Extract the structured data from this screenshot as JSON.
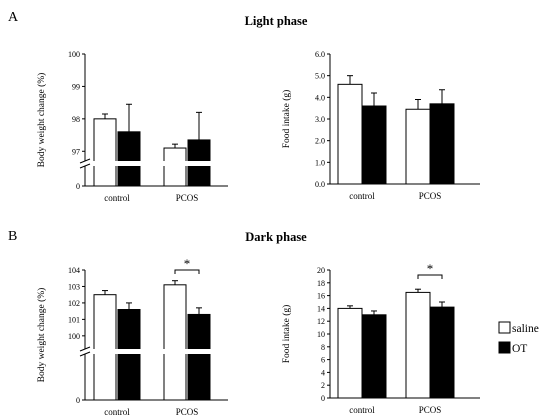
{
  "figure": {
    "panels": [
      {
        "label": "A",
        "title": "Light phase"
      },
      {
        "label": "B",
        "title": "Dark phase"
      }
    ]
  },
  "legend": {
    "entries": [
      {
        "label": "saline",
        "fill": "#ffffff"
      },
      {
        "label": "OT",
        "fill": "#000000"
      }
    ]
  },
  "chart_data": [
    {
      "id": "light-bw",
      "type": "bar",
      "panel": "A",
      "title": "",
      "ylabel": "Body weight change (%)",
      "xlabel": "",
      "categories": [
        "control",
        "PCOS"
      ],
      "axis_break": true,
      "yticks": [
        0,
        97,
        98,
        99,
        100
      ],
      "ylim_upper": [
        96.7,
        100
      ],
      "series": [
        {
          "name": "saline",
          "color": "#ffffff",
          "values": [
            98.0,
            97.1
          ],
          "errors": [
            0.15,
            0.12
          ]
        },
        {
          "name": "OT",
          "color": "#000000",
          "values": [
            97.6,
            97.35
          ],
          "errors": [
            0.85,
            0.85
          ]
        }
      ],
      "significance": []
    },
    {
      "id": "light-food",
      "type": "bar",
      "panel": "A",
      "title": "",
      "ylabel": "Food intake (g)",
      "xlabel": "",
      "categories": [
        "control",
        "PCOS"
      ],
      "axis_break": false,
      "yticks": [
        "0.0",
        "1.0",
        "2.0",
        "3.0",
        "4.0",
        "5.0",
        "6.0"
      ],
      "ylim": [
        0,
        6
      ],
      "series": [
        {
          "name": "saline",
          "color": "#ffffff",
          "values": [
            4.6,
            3.45
          ],
          "errors": [
            0.4,
            0.45
          ]
        },
        {
          "name": "OT",
          "color": "#000000",
          "values": [
            3.6,
            3.7
          ],
          "errors": [
            0.6,
            0.65
          ]
        }
      ],
      "significance": []
    },
    {
      "id": "dark-bw",
      "type": "bar",
      "panel": "B",
      "title": "",
      "ylabel": "Body weight change (%)",
      "xlabel": "",
      "categories": [
        "control",
        "PCOS"
      ],
      "axis_break": true,
      "yticks": [
        0,
        100,
        101,
        102,
        103,
        104
      ],
      "ylim_upper": [
        99.2,
        104
      ],
      "series": [
        {
          "name": "saline",
          "color": "#ffffff",
          "values": [
            102.5,
            103.1
          ],
          "errors": [
            0.25,
            0.25
          ]
        },
        {
          "name": "OT",
          "color": "#000000",
          "values": [
            101.6,
            101.3
          ],
          "errors": [
            0.4,
            0.4
          ]
        }
      ],
      "significance": [
        {
          "category": "PCOS",
          "label": "*"
        }
      ]
    },
    {
      "id": "dark-food",
      "type": "bar",
      "panel": "B",
      "title": "",
      "ylabel": "Food intake (g)",
      "xlabel": "",
      "categories": [
        "control",
        "PCOS"
      ],
      "axis_break": false,
      "yticks": [
        0,
        2,
        4,
        6,
        8,
        10,
        12,
        14,
        16,
        18,
        20
      ],
      "ylim": [
        0,
        20
      ],
      "series": [
        {
          "name": "saline",
          "color": "#ffffff",
          "values": [
            14.0,
            16.5
          ],
          "errors": [
            0.4,
            0.5
          ]
        },
        {
          "name": "OT",
          "color": "#000000",
          "values": [
            13.0,
            14.2
          ],
          "errors": [
            0.6,
            0.8
          ]
        }
      ],
      "significance": [
        {
          "category": "PCOS",
          "label": "*"
        }
      ]
    }
  ]
}
